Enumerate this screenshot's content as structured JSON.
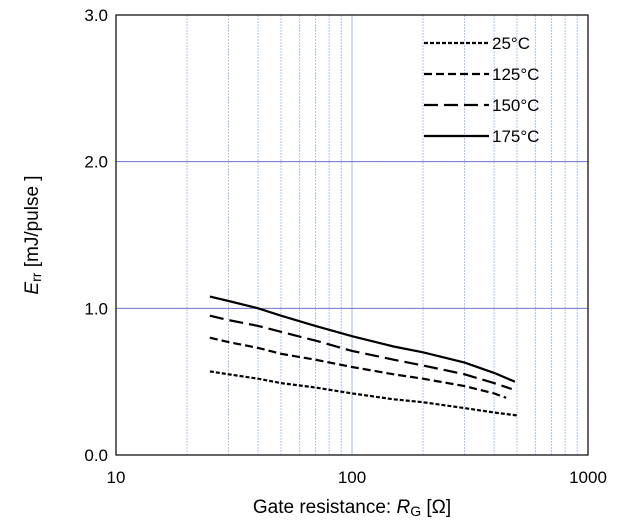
{
  "chart_data": {
    "type": "line",
    "xscale": "log",
    "xlim": [
      10,
      1000
    ],
    "ylim": [
      0,
      3
    ],
    "x_ticks": [
      "10",
      "100",
      "1000"
    ],
    "y_ticks": [
      "0.0",
      "1.0",
      "2.0",
      "3.0"
    ],
    "xlabel": {
      "text": "Gate resistance: ",
      "symbol": "R",
      "subscript": "G",
      "unit": " [Ω]"
    },
    "ylabel": {
      "symbol": "E",
      "subscript": "rr",
      "unit": " [mJ/pulse ]"
    },
    "grid": {
      "x_minor": true,
      "y_major": true,
      "grid_color": "#9db8e0",
      "major_color": "#6f6fd0"
    },
    "legend_position": "top-right",
    "series": [
      {
        "name": "25°C",
        "dash": "short-dash",
        "x": [
          25,
          30,
          40,
          50,
          70,
          100,
          150,
          200,
          300,
          400,
          500
        ],
        "y": [
          0.57,
          0.55,
          0.52,
          0.49,
          0.46,
          0.42,
          0.38,
          0.36,
          0.32,
          0.29,
          0.27
        ]
      },
      {
        "name": "125°C",
        "dash": "dash",
        "x": [
          25,
          30,
          40,
          50,
          70,
          100,
          150,
          200,
          300,
          400,
          450
        ],
        "y": [
          0.8,
          0.77,
          0.73,
          0.69,
          0.65,
          0.6,
          0.55,
          0.52,
          0.47,
          0.42,
          0.39
        ]
      },
      {
        "name": "150°C",
        "dash": "long-dash",
        "x": [
          25,
          30,
          40,
          50,
          70,
          100,
          150,
          200,
          300,
          400,
          475
        ],
        "y": [
          0.95,
          0.92,
          0.88,
          0.84,
          0.78,
          0.71,
          0.65,
          0.61,
          0.55,
          0.49,
          0.45
        ]
      },
      {
        "name": "175°C",
        "dash": "solid",
        "x": [
          25,
          30,
          40,
          50,
          70,
          100,
          150,
          200,
          300,
          400,
          490
        ],
        "y": [
          1.08,
          1.05,
          1.0,
          0.95,
          0.88,
          0.81,
          0.74,
          0.7,
          0.63,
          0.56,
          0.5
        ]
      }
    ]
  }
}
